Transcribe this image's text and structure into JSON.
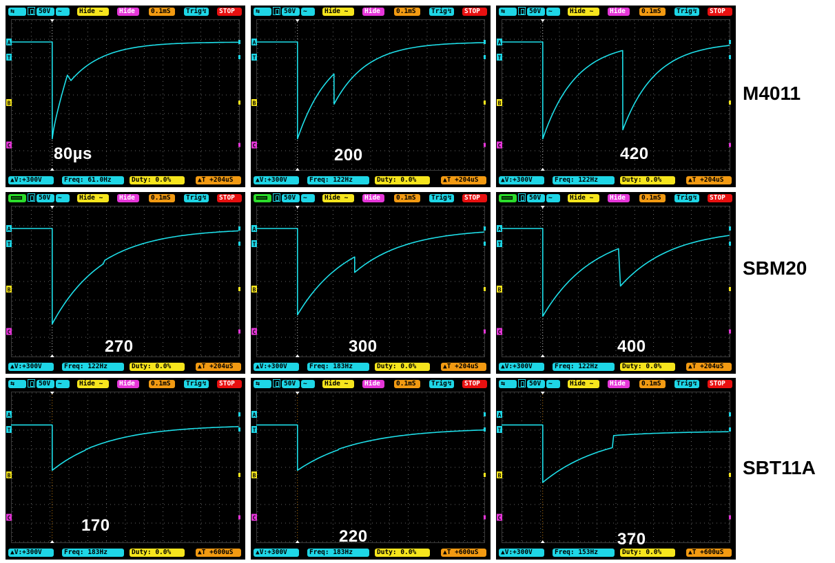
{
  "rows": [
    {
      "label": "M4011",
      "scopes": [
        {
          "top": {
            "source": "usb",
            "volt_div": "50V",
            "coupling": "~",
            "ch_b": "Hide ~",
            "math": "Hide",
            "timebase": "0.1mS",
            "trig": "Trig",
            "run_state": "STOP"
          },
          "bottom": {
            "voltage": "▲V:+300V",
            "freq": "Freq: 61.0Hz",
            "duty": "Duty: 0.0%",
            "delay": "▲T +204uS"
          },
          "value_label": "80µs",
          "waveform": {
            "baseline": 0.15,
            "min": 0.79,
            "drop_x": 0.18,
            "knee_x": 0.25,
            "knee_y": 0.35,
            "tau": 0.32
          }
        },
        {
          "top": {
            "source": "usb",
            "volt_div": "50V",
            "coupling": "~",
            "ch_b": "Hide ~",
            "math": "Hide",
            "timebase": "0.1mS",
            "trig": "Trig",
            "run_state": "STOP"
          },
          "bottom": {
            "voltage": "▲V:+300V",
            "freq": "Freq: 122Hz",
            "duty": "Duty: 0.0%",
            "delay": "▲T +204uS"
          },
          "value_label": "200",
          "waveform": {
            "baseline": 0.15,
            "min": 0.79,
            "drop_x": 0.18,
            "second_x": 0.34,
            "second_y": 0.56,
            "tau": 0.32
          }
        },
        {
          "top": {
            "source": "usb",
            "volt_div": "50V",
            "coupling": "~",
            "ch_b": "Hide ~",
            "math": "Hide",
            "timebase": "0.1mS",
            "trig": "Trig",
            "run_state": "STOP"
          },
          "bottom": {
            "voltage": "▲V:+300V",
            "freq": "Freq: 122Hz",
            "duty": "Duty: 0.0%",
            "delay": "▲T +204uS"
          },
          "value_label": "420",
          "waveform": {
            "baseline": 0.15,
            "min": 0.79,
            "drop_x": 0.18,
            "second_x": 0.53,
            "second_y": 0.73,
            "tau": 0.32
          }
        }
      ]
    },
    {
      "label": "SBM20",
      "scopes": [
        {
          "top": {
            "source": "battery",
            "volt_div": "50V",
            "coupling": "~",
            "ch_b": "Hide ~",
            "math": "Hide",
            "timebase": "0.1mS",
            "trig": "Trig",
            "run_state": "STOP"
          },
          "bottom": {
            "voltage": "▲V:+300V",
            "freq": "Freq: 122Hz",
            "duty": "Duty: 0.0%",
            "delay": "▲T +204uS"
          },
          "value_label": "270",
          "waveform": {
            "baseline": 0.15,
            "min": 0.78,
            "drop_x": 0.18,
            "second_x": 0.41,
            "second_y": 0.36,
            "tau": 0.5
          }
        },
        {
          "top": {
            "source": "battery",
            "volt_div": "50V",
            "coupling": "~",
            "ch_b": "Hide ~",
            "math": "Hide",
            "timebase": "0.1mS",
            "trig": "Trig",
            "run_state": "STOP"
          },
          "bottom": {
            "voltage": "▲V:+300V",
            "freq": "Freq: 183Hz",
            "duty": "Duty: 0.0%",
            "delay": "▲T +204uS"
          },
          "value_label": "300",
          "waveform": {
            "baseline": 0.15,
            "min": 0.72,
            "drop_x": 0.18,
            "second_x": 0.43,
            "second_y": 0.44,
            "tau": 0.5
          }
        },
        {
          "top": {
            "source": "battery",
            "volt_div": "50V",
            "coupling": "~",
            "ch_b": "Hide ~",
            "math": "Hide",
            "timebase": "0.1mS",
            "trig": "Trig",
            "run_state": "STOP"
          },
          "bottom": {
            "voltage": "▲V:+300V",
            "freq": "Freq: 122Hz",
            "duty": "Duty: 0.0%",
            "delay": "▲T +204uS"
          },
          "value_label": "400",
          "waveform": {
            "baseline": 0.15,
            "min": 0.73,
            "drop_x": 0.18,
            "second_x": 0.52,
            "second_y": 0.53,
            "tau": 0.5
          }
        }
      ]
    },
    {
      "label": "SBT11A",
      "scopes": [
        {
          "top": {
            "source": "usb",
            "volt_div": "50V",
            "coupling": "~",
            "ch_b": "Hide ~",
            "math": "Hide",
            "timebase": "0.1mS",
            "trig": "Trig",
            "run_state": "STOP"
          },
          "bottom": {
            "voltage": "▲V:+300V",
            "freq": "Freq: 183Hz",
            "duty": "Duty: 0.0%",
            "delay": "▲T +600uS"
          },
          "value_label": "170",
          "waveform": {
            "baseline": 0.22,
            "min": 0.52,
            "drop_x": 0.18,
            "second_x": 0.33,
            "second_y": 0.38,
            "tau": 0.55,
            "end_y": 0.22
          }
        },
        {
          "top": {
            "source": "usb",
            "volt_div": "50V",
            "coupling": "~",
            "ch_b": "Hide ~",
            "math": "Hide",
            "timebase": "0.1mS",
            "trig": "Trig",
            "run_state": "STOP"
          },
          "bottom": {
            "voltage": "▲V:+300V",
            "freq": "Freq: 183Hz",
            "duty": "Duty: 0.0%",
            "delay": "▲T +600uS"
          },
          "value_label": "220",
          "waveform": {
            "baseline": 0.22,
            "min": 0.52,
            "drop_x": 0.18,
            "second_x": 0.36,
            "second_y": 0.38,
            "tau": 0.6,
            "end_y": 0.24
          }
        },
        {
          "top": {
            "source": "usb",
            "volt_div": "50V",
            "coupling": "~",
            "ch_b": "Hide ~",
            "math": "Hide",
            "timebase": "0.1mS",
            "trig": "Trig",
            "run_state": "STOP"
          },
          "bottom": {
            "voltage": "▲V:+300V",
            "freq": "Freq: 153Hz",
            "duty": "Duty: 0.0%",
            "delay": "▲T +600uS"
          },
          "value_label": "370",
          "waveform": {
            "baseline": 0.22,
            "min": 0.6,
            "drop_x": 0.18,
            "second_x": 0.49,
            "second_y": 0.29,
            "tau": 0.6,
            "end_y": 0.26
          }
        }
      ]
    }
  ],
  "colors": {
    "trace": "#1ee0ea",
    "grid": "#8a8a8a",
    "ch_a": "#1ed6e6",
    "ch_b": "#f6e51d",
    "ch_c": "#e636d9",
    "trig_marker": "#f29a12"
  },
  "channel_markers": {
    "a": "A",
    "t": "T",
    "b": "B",
    "c": "C"
  }
}
